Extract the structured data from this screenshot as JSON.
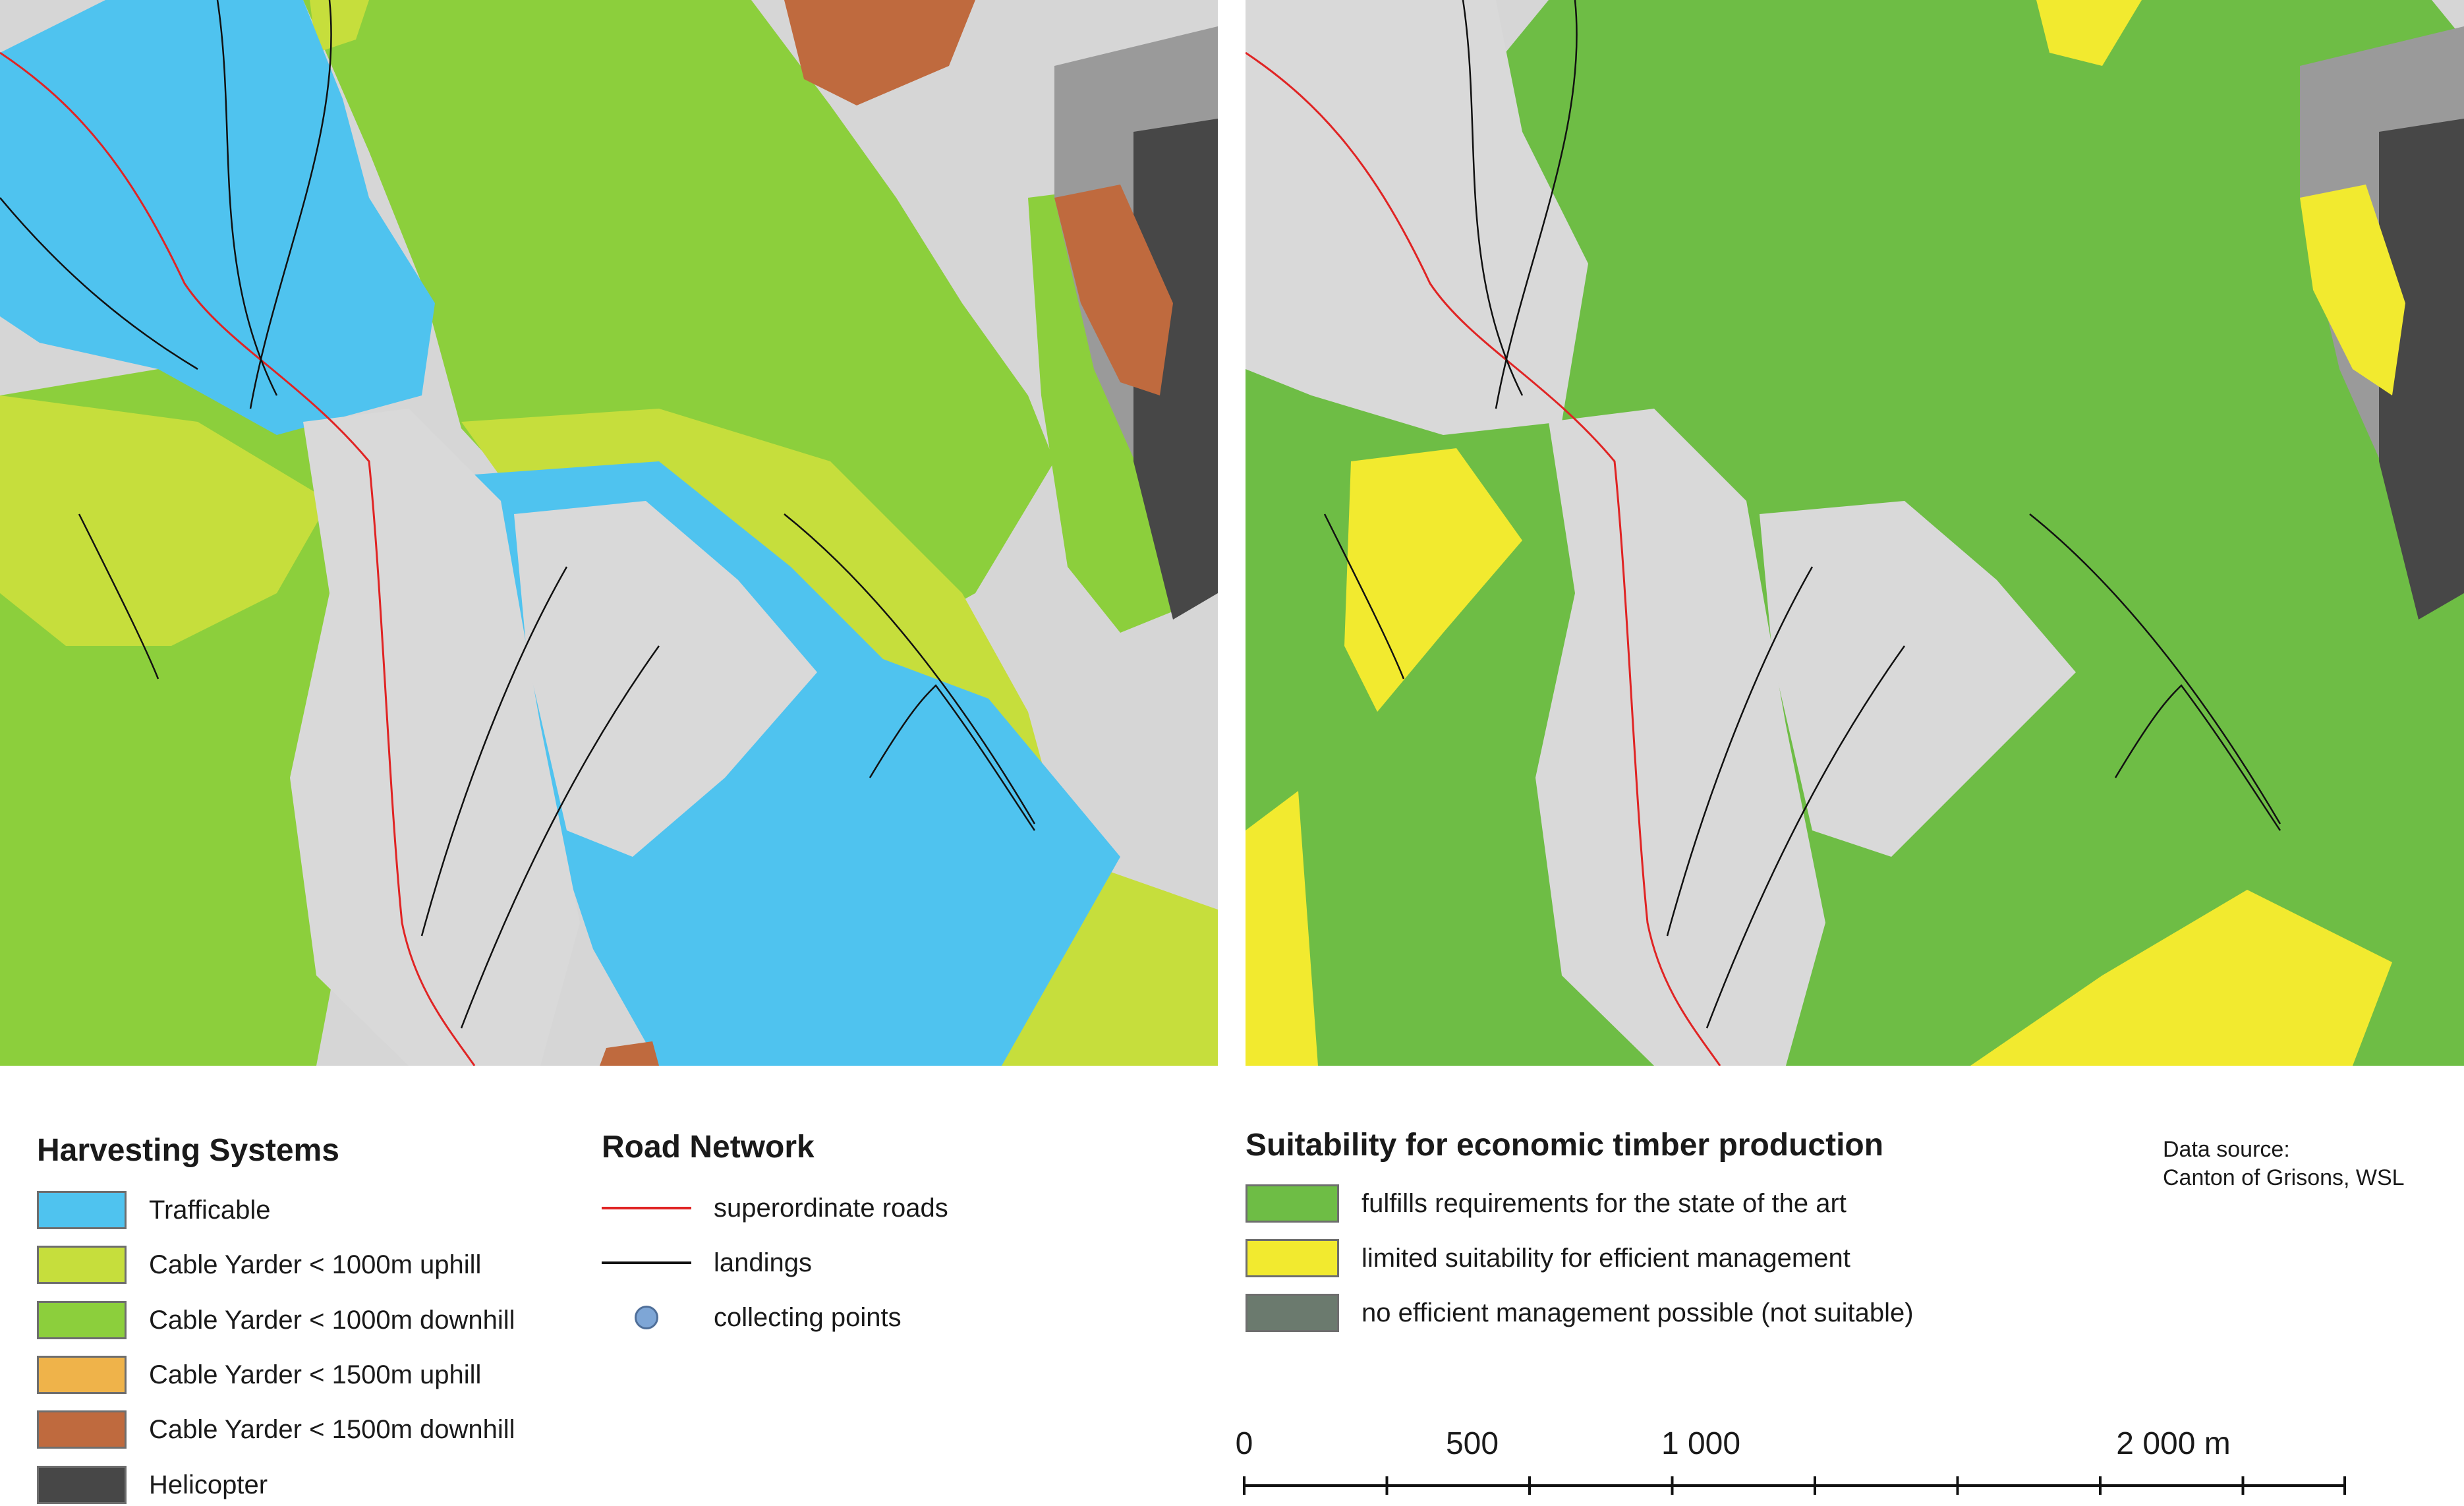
{
  "colors": {
    "trafficable": "#4fc3ef",
    "cable_1000_up": "#c6de3c",
    "cable_1000_down": "#8ccf3c",
    "cable_1500_up": "#efb34a",
    "cable_1500_down": "#bf6a3e",
    "helicopter": "#474747",
    "suitable": "#6ebd45",
    "limited": "#f2ea2f",
    "not_suitable": "#6b7a6e",
    "superordinate_road": "#e02424",
    "landing": "#111111",
    "collecting_point": "#7ea6d6"
  },
  "harvesting_legend": {
    "title": "Harvesting Systems",
    "items": [
      {
        "label": "Trafficable",
        "color": "#4fc3ef"
      },
      {
        "label": "Cable Yarder < 1000m uphill",
        "color": "#c6de3c"
      },
      {
        "label": "Cable Yarder < 1000m downhill",
        "color": "#8ccf3c"
      },
      {
        "label": "Cable Yarder < 1500m uphill",
        "color": "#efb34a"
      },
      {
        "label": "Cable Yarder < 1500m downhill",
        "color": "#bf6a3e"
      },
      {
        "label": "Helicopter",
        "color": "#474747"
      }
    ]
  },
  "road_legend": {
    "title": "Road Network",
    "items": [
      {
        "label": "superordinate roads",
        "symbol": "line",
        "color": "#e02424"
      },
      {
        "label": "landings",
        "symbol": "line",
        "color": "#111111"
      },
      {
        "label": "collecting points",
        "symbol": "dot",
        "color": "#7ea6d6"
      }
    ]
  },
  "suitability_legend": {
    "title": "Suitability for economic timber production",
    "items": [
      {
        "label": "fulfills requirements for the state of the art",
        "color": "#6ebd45"
      },
      {
        "label": "limited suitability for efficient management",
        "color": "#f2ea2f"
      },
      {
        "label": "no efficient management possible (not suitable)",
        "color": "#6b7a6e"
      }
    ]
  },
  "data_source": {
    "line1": "Data source:",
    "line2": "Canton of Grisons, WSL"
  },
  "scale_bar": {
    "labels": [
      "0",
      "500",
      "1 000",
      "2 000 m"
    ],
    "label_values": [
      0,
      500,
      1000,
      2000
    ],
    "max": 2000,
    "minor_interval": 250
  }
}
